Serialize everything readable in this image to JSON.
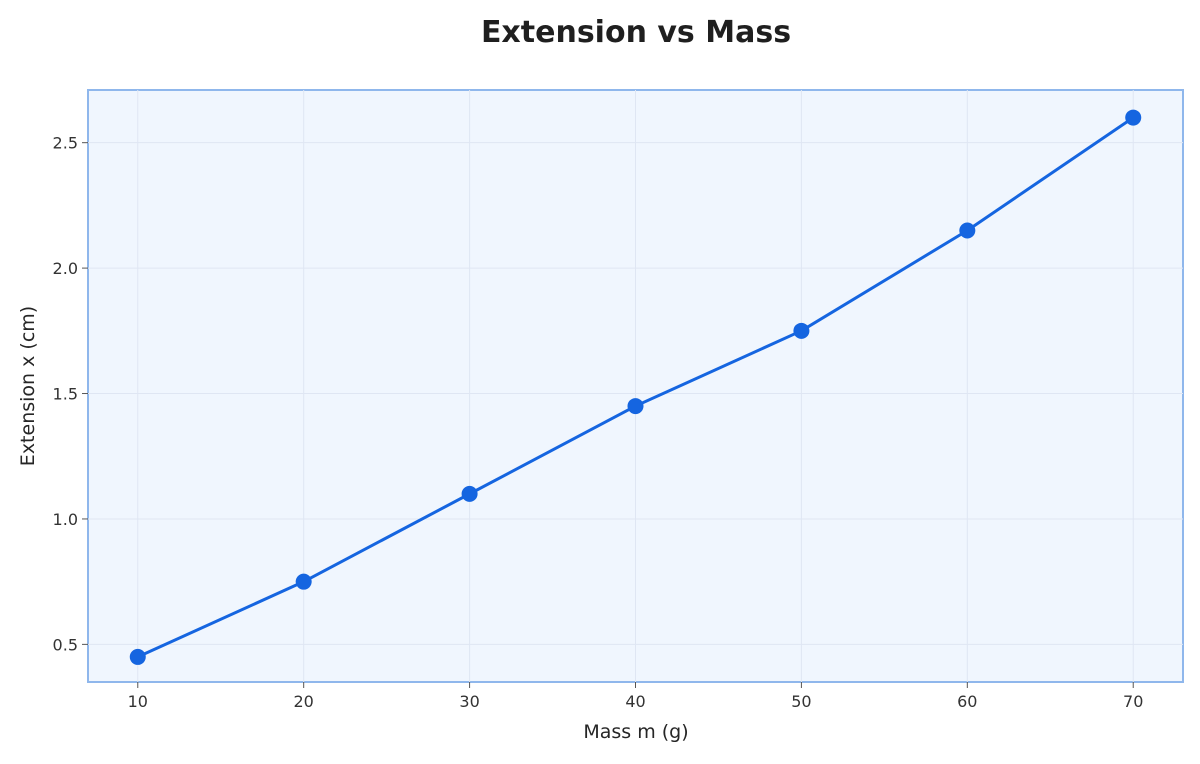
{
  "chart_data": {
    "type": "line",
    "title": "Extension vs Mass",
    "xlabel": "Mass m (g)",
    "ylabel": "Extension x (cm)",
    "x": [
      10,
      20,
      30,
      40,
      50,
      60,
      70
    ],
    "series": [
      {
        "values": [
          0.45,
          0.75,
          1.1,
          1.45,
          1.75,
          2.15,
          2.6
        ]
      }
    ],
    "xlim": [
      7,
      73
    ],
    "ylim": [
      0.35,
      2.71
    ],
    "xticks": [
      10,
      20,
      30,
      40,
      50,
      60,
      70
    ],
    "yticks": [
      0.5,
      1.0,
      1.5,
      2.0,
      2.5
    ],
    "ytick_labels": [
      "0.5",
      "1.0",
      "1.5",
      "2.0",
      "2.5"
    ],
    "grid": true,
    "colors": {
      "line": "#1565e0",
      "marker": "#1565e0",
      "plot_background": "#f0f6fe",
      "plot_border": "#8fb7ec",
      "grid": "#dfe6f3"
    }
  }
}
